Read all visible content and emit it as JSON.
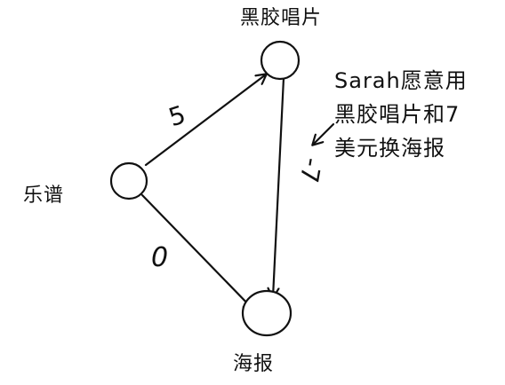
{
  "diagram": {
    "nodes": {
      "top": {
        "label": "黑胶唱片"
      },
      "left": {
        "label": "乐谱"
      },
      "bottom": {
        "label": "海报"
      }
    },
    "edges": {
      "left_to_top": {
        "weight": "5"
      },
      "left_to_bottom": {
        "weight": "0"
      },
      "top_to_bottom": {
        "weight": "-7"
      }
    },
    "note": {
      "lines": [
        "Sarah愿意用",
        "黑胶唱片和7",
        "美元换海报"
      ]
    }
  },
  "colors": {
    "ink": "#111111",
    "background": "#ffffff"
  }
}
